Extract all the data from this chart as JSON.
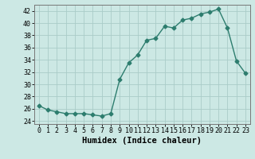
{
  "x": [
    0,
    1,
    2,
    3,
    4,
    5,
    6,
    7,
    8,
    9,
    10,
    11,
    12,
    13,
    14,
    15,
    16,
    17,
    18,
    19,
    20,
    21,
    22,
    23
  ],
  "y": [
    26.5,
    25.8,
    25.5,
    25.2,
    25.2,
    25.2,
    25.0,
    24.8,
    25.2,
    30.8,
    33.5,
    34.8,
    37.2,
    37.5,
    39.5,
    39.2,
    40.5,
    40.8,
    41.5,
    41.8,
    42.3,
    39.2,
    33.8,
    31.8
  ],
  "line_color": "#2d7d6e",
  "marker": "D",
  "marker_size": 2.5,
  "bg_color": "#cce8e4",
  "grid_color": "#aaccc8",
  "xlabel": "Humidex (Indice chaleur)",
  "xlim": [
    -0.5,
    23.5
  ],
  "ylim": [
    23.5,
    43.0
  ],
  "yticks": [
    24,
    26,
    28,
    30,
    32,
    34,
    36,
    38,
    40,
    42
  ],
  "xticks": [
    0,
    1,
    2,
    3,
    4,
    5,
    6,
    7,
    8,
    9,
    10,
    11,
    12,
    13,
    14,
    15,
    16,
    17,
    18,
    19,
    20,
    21,
    22,
    23
  ],
  "tick_fontsize": 6.0,
  "xlabel_fontsize": 7.5
}
